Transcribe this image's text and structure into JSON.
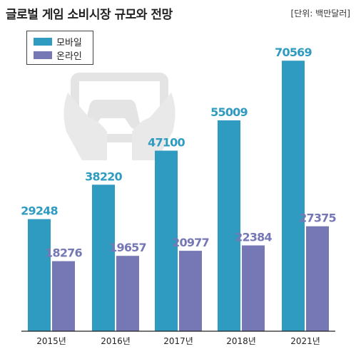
{
  "page": {
    "title": "글로벌 게임 소비시장 규모와 전망",
    "unit_label": "[단위: 백만달러]"
  },
  "colors": {
    "mobile": "#2f9bc0",
    "online": "#7678b6",
    "mobile_label": "#2f9bc0",
    "online_label": "#7678b6",
    "watermark": "#e6e6e6"
  },
  "icons": {
    "watermark": "gamepad-icon"
  },
  "chart_data": {
    "type": "bar",
    "title": "글로벌 게임 소비시장 규모와 전망",
    "xlabel": "",
    "ylabel": "",
    "ylim": [
      0,
      76000
    ],
    "grid": false,
    "legend_position": "top-left",
    "categories": [
      "2015년",
      "2016년",
      "2017년",
      "2018년",
      "2021년"
    ],
    "series": [
      {
        "name": "모바일",
        "values": [
          29248,
          38220,
          47100,
          55009,
          70569
        ]
      },
      {
        "name": "온라인",
        "values": [
          18276,
          19657,
          20977,
          22384,
          27375
        ]
      }
    ]
  }
}
